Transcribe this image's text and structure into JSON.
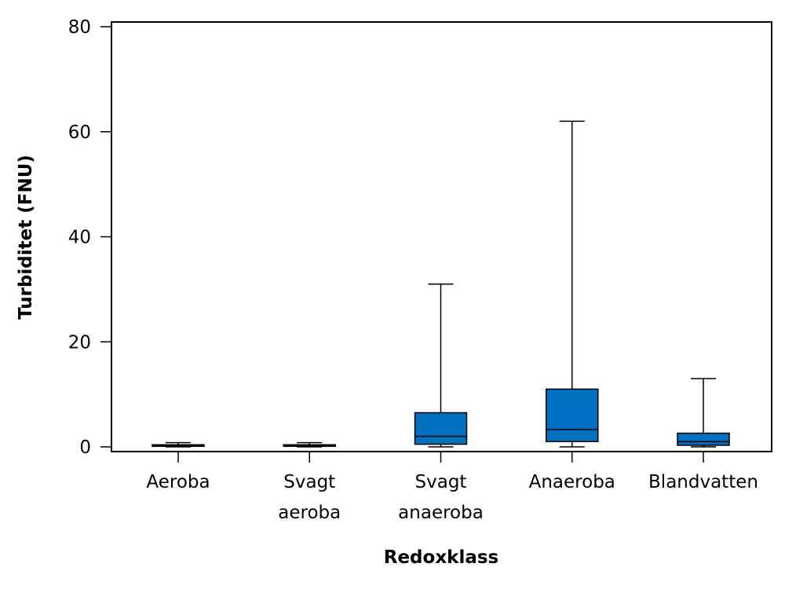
{
  "chart_data": {
    "type": "boxplot",
    "xlabel": "Redoxklass",
    "ylabel": "Turbiditet (FNU)",
    "ylim": [
      0,
      80
    ],
    "yticks": [
      0,
      20,
      40,
      60,
      80
    ],
    "box_color": "#0070c0",
    "categories": [
      {
        "label_lines": [
          "Aeroba"
        ],
        "min": 0,
        "q1": 0.1,
        "median": 0.2,
        "q3": 0.4,
        "max": 0.8
      },
      {
        "label_lines": [
          "Svagt",
          "aeroba"
        ],
        "min": 0,
        "q1": 0.1,
        "median": 0.2,
        "q3": 0.4,
        "max": 0.8
      },
      {
        "label_lines": [
          "Svagt",
          "anaeroba"
        ],
        "min": 0,
        "q1": 0.5,
        "median": 2,
        "q3": 6.5,
        "max": 31
      },
      {
        "label_lines": [
          "Anaeroba"
        ],
        "min": 0,
        "q1": 1,
        "median": 3.3,
        "q3": 11,
        "max": 62
      },
      {
        "label_lines": [
          "Blandvatten"
        ],
        "min": 0,
        "q1": 0.3,
        "median": 1,
        "q3": 2.6,
        "max": 13
      }
    ]
  }
}
